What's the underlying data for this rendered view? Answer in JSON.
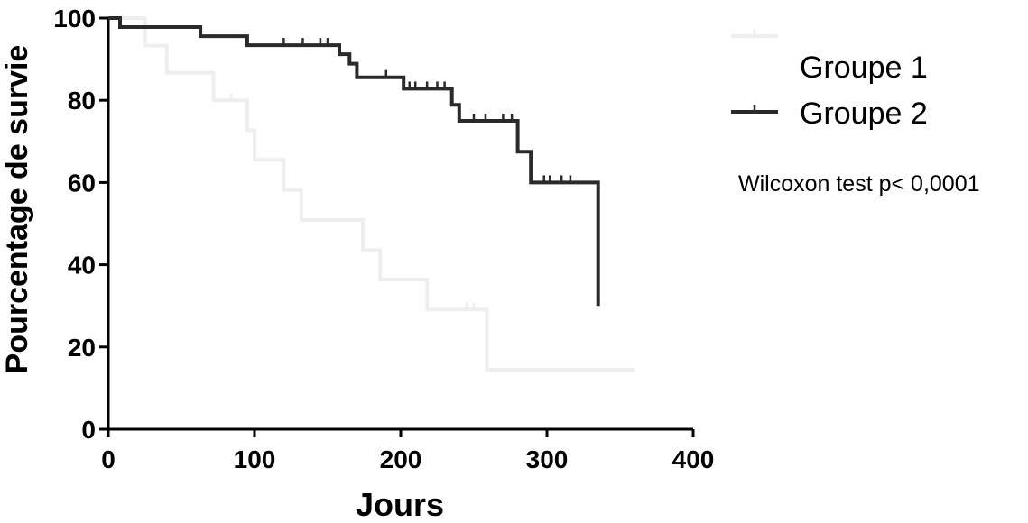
{
  "chart_data": {
    "type": "line",
    "subtype": "kaplan-meier step",
    "title": "",
    "xlabel": "Jours",
    "ylabel": "Pourcentage de survie",
    "xlim": [
      0,
      400
    ],
    "ylim": [
      0,
      100
    ],
    "xticks": [
      "0",
      "100",
      "200",
      "300",
      "400"
    ],
    "yticks": [
      "0",
      "20",
      "40",
      "60",
      "80",
      "100"
    ],
    "grid": false,
    "legend_position": "right",
    "annotation": "Wilcoxon test p< 0,0001",
    "series": [
      {
        "name": "Groupe 1",
        "color": "#eeeeee",
        "steps": [
          [
            0,
            100
          ],
          [
            25,
            100
          ],
          [
            25,
            93.3
          ],
          [
            40,
            93.3
          ],
          [
            40,
            86.7
          ],
          [
            72,
            86.7
          ],
          [
            72,
            80
          ],
          [
            95,
            80
          ],
          [
            95,
            72.7
          ],
          [
            100,
            72.7
          ],
          [
            100,
            65.5
          ],
          [
            120,
            65.5
          ],
          [
            120,
            58.2
          ],
          [
            132,
            58.2
          ],
          [
            132,
            50.9
          ],
          [
            174,
            50.9
          ],
          [
            174,
            43.6
          ],
          [
            186,
            43.6
          ],
          [
            186,
            36.4
          ],
          [
            218,
            36.4
          ],
          [
            218,
            29.1
          ],
          [
            259,
            29.1
          ],
          [
            259,
            14.5
          ],
          [
            360,
            14.5
          ]
        ],
        "censored": [
          [
            84,
            80
          ],
          [
            245,
            29.1
          ],
          [
            250,
            29.1
          ]
        ]
      },
      {
        "name": "Groupe 2",
        "color": "#2a2a2a",
        "steps": [
          [
            0,
            100
          ],
          [
            8,
            100
          ],
          [
            8,
            97.8
          ],
          [
            63,
            97.8
          ],
          [
            63,
            95.6
          ],
          [
            95,
            95.6
          ],
          [
            95,
            93.4
          ],
          [
            158,
            93.4
          ],
          [
            158,
            91.2
          ],
          [
            165,
            91.2
          ],
          [
            165,
            88.9
          ],
          [
            170,
            88.9
          ],
          [
            170,
            85.6
          ],
          [
            202,
            85.6
          ],
          [
            202,
            82.8
          ],
          [
            235,
            82.8
          ],
          [
            235,
            78.9
          ],
          [
            240,
            78.9
          ],
          [
            240,
            75
          ],
          [
            280,
            75
          ],
          [
            280,
            67.5
          ],
          [
            289,
            67.5
          ],
          [
            289,
            60
          ],
          [
            335,
            60
          ],
          [
            335,
            30
          ]
        ],
        "censored": [
          [
            120,
            93.4
          ],
          [
            133,
            93.4
          ],
          [
            145,
            93.4
          ],
          [
            150,
            93.4
          ],
          [
            190,
            85.6
          ],
          [
            206,
            82.8
          ],
          [
            210,
            82.8
          ],
          [
            218,
            82.8
          ],
          [
            225,
            82.8
          ],
          [
            230,
            82.8
          ],
          [
            250,
            75
          ],
          [
            258,
            75
          ],
          [
            270,
            75
          ],
          [
            276,
            75
          ],
          [
            298,
            60
          ],
          [
            302,
            60
          ],
          [
            310,
            60
          ],
          [
            316,
            60
          ]
        ]
      }
    ]
  }
}
